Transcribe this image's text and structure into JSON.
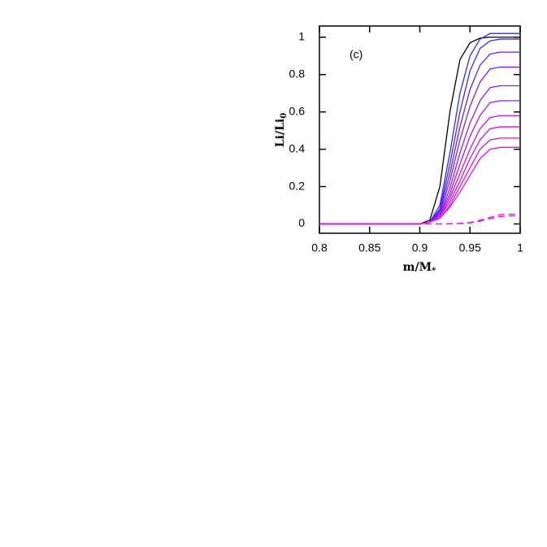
{
  "chart_data": {
    "type": "line",
    "annotation": "(c)",
    "xlabel": "m/M",
    "xlabel_sub": "*",
    "ylabel": "Li/Li",
    "ylabel_sub": "0",
    "x": [
      0.8,
      0.85,
      0.9,
      0.91,
      0.92,
      0.93,
      0.94,
      0.95,
      0.96,
      0.97,
      0.98,
      0.99,
      1.0
    ],
    "series": [
      {
        "color": "#000000",
        "values": [
          0,
          0,
          0,
          0.02,
          0.2,
          0.6,
          0.88,
          0.97,
          0.995,
          1,
          1,
          1,
          1
        ]
      },
      {
        "color": "#2a2aff",
        "values": [
          0,
          0,
          0,
          0.01,
          0.1,
          0.38,
          0.7,
          0.9,
          0.99,
          1.02,
          1.02,
          1.02,
          1.02
        ]
      },
      {
        "color": "#4a22ff",
        "values": [
          0,
          0,
          0,
          0.01,
          0.08,
          0.32,
          0.6,
          0.82,
          0.94,
          0.98,
          0.99,
          0.99,
          0.99
        ]
      },
      {
        "color": "#6020ff",
        "values": [
          0,
          0,
          0,
          0.01,
          0.07,
          0.27,
          0.52,
          0.72,
          0.85,
          0.91,
          0.92,
          0.92,
          0.92
        ]
      },
      {
        "color": "#7a1cff",
        "values": [
          0,
          0,
          0,
          0.01,
          0.06,
          0.23,
          0.45,
          0.63,
          0.76,
          0.83,
          0.84,
          0.84,
          0.84
        ]
      },
      {
        "color": "#901af5",
        "values": [
          0,
          0,
          0,
          0.01,
          0.05,
          0.19,
          0.38,
          0.54,
          0.66,
          0.73,
          0.74,
          0.74,
          0.74
        ]
      },
      {
        "color": "#a816f0",
        "values": [
          0,
          0,
          0,
          0.01,
          0.05,
          0.16,
          0.32,
          0.47,
          0.58,
          0.65,
          0.66,
          0.66,
          0.66
        ]
      },
      {
        "color": "#bc12ee",
        "values": [
          0,
          0,
          0,
          0.01,
          0.04,
          0.14,
          0.27,
          0.4,
          0.51,
          0.57,
          0.58,
          0.58,
          0.58
        ]
      },
      {
        "color": "#d00ee8",
        "values": [
          0,
          0,
          0,
          0.01,
          0.04,
          0.12,
          0.23,
          0.35,
          0.45,
          0.51,
          0.52,
          0.52,
          0.52
        ]
      },
      {
        "color": "#e40ae6",
        "values": [
          0,
          0,
          0,
          0.01,
          0.03,
          0.1,
          0.2,
          0.3,
          0.4,
          0.45,
          0.46,
          0.46,
          0.46
        ]
      },
      {
        "color": "#f806f8",
        "values": [
          0,
          0,
          0,
          0.01,
          0.03,
          0.09,
          0.17,
          0.26,
          0.35,
          0.4,
          0.41,
          0.41,
          0.41
        ]
      },
      {
        "color": "#ff00ff",
        "dashed": true,
        "values": [
          0,
          0,
          0,
          0,
          0,
          0.001,
          0.003,
          0.008,
          0.02,
          0.035,
          0.05,
          0.052,
          0.052
        ]
      },
      {
        "color": "#ff00ff",
        "dashed": true,
        "values": [
          0,
          0,
          0,
          0,
          0,
          0,
          0.002,
          0.006,
          0.015,
          0.028,
          0.04,
          0.043,
          0.043
        ]
      }
    ],
    "xlim": [
      0.8,
      1.0
    ],
    "xticks": [
      0.8,
      0.85,
      0.9,
      0.95,
      1
    ],
    "ylim": [
      -0.05,
      1.06
    ],
    "yticks": [
      0,
      0.2,
      0.4,
      0.6,
      0.8,
      1
    ]
  }
}
